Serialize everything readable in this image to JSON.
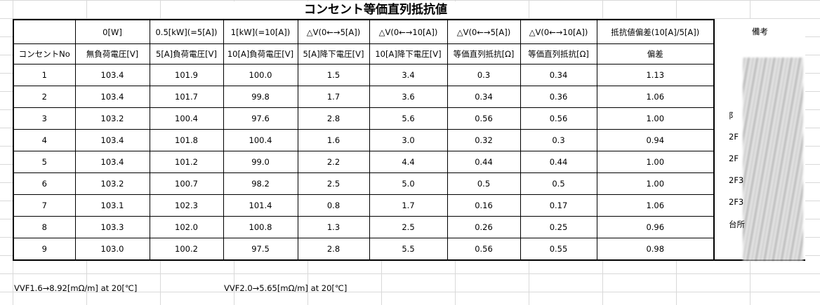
{
  "title": "コンセント等価直列抵抗値",
  "header_row1": [
    "",
    "0[W]",
    "0.5[kW](=5[A])",
    "1[kW](=10[A])",
    "△V(0←→5[A])",
    "△V(0←→10[A])",
    "△V(0←→5[A])",
    "△V(0←→10[A])",
    "抵抗値偏差(10[A]/5[A])",
    "備考"
  ],
  "header_row2": [
    "コンセントNo",
    "無負荷電圧[V]",
    "5[A]負荷電圧[V]",
    "10[A]負荷電圧[V]",
    "5[A]降下電圧[V]",
    "10[A]降下電圧[V]",
    "等価直列抵抗[Ω]",
    "等価直列抵抗[Ω]",
    "偏差",
    ""
  ],
  "rows": [
    [
      "1",
      "103.4",
      "101.9",
      "100.0",
      "1.5",
      "3.4",
      "0.3",
      "0.34",
      "1.13"
    ],
    [
      "2",
      "103.4",
      "101.7",
      "99.8",
      "1.7",
      "3.6",
      "0.34",
      "0.36",
      "1.06"
    ],
    [
      "3",
      "103.2",
      "100.4",
      "97.6",
      "2.8",
      "5.6",
      "0.56",
      "0.56",
      "1.00"
    ],
    [
      "4",
      "103.4",
      "101.8",
      "100.4",
      "1.6",
      "3.0",
      "0.32",
      "0.3",
      "0.94"
    ],
    [
      "5",
      "103.4",
      "101.2",
      "99.0",
      "2.2",
      "4.4",
      "0.44",
      "0.44",
      "1.00"
    ],
    [
      "6",
      "103.2",
      "100.7",
      "98.2",
      "2.5",
      "5.0",
      "0.5",
      "0.5",
      "1.00"
    ],
    [
      "7",
      "103.1",
      "102.3",
      "101.4",
      "0.8",
      "1.7",
      "0.16",
      "0.17",
      "1.06"
    ],
    [
      "8",
      "103.3",
      "102.0",
      "100.8",
      "1.3",
      "2.5",
      "0.26",
      "0.25",
      "0.96"
    ],
    [
      "9",
      "103.0",
      "100.2",
      "97.5",
      "2.8",
      "5.5",
      "0.56",
      "0.55",
      "0.98"
    ]
  ],
  "remarks_visible": [
    "",
    "",
    "阝",
    "2F",
    "2F",
    "2F3",
    "2F3",
    "台所",
    ""
  ],
  "footer": {
    "vvf16": "VVF1.6→8.92[mΩ/m] at 20[℃]",
    "vvf20": "VVF2.0→5.65[mΩ/m] at 20[℃]"
  }
}
